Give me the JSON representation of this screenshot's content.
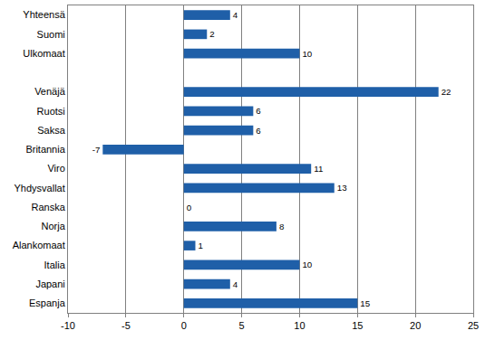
{
  "chart_data": {
    "type": "bar",
    "orientation": "horizontal",
    "categories": [
      "Yhteensä",
      "Suomi",
      "Ulkomaat",
      null,
      "Venäjä",
      "Ruotsi",
      "Saksa",
      "Britannia",
      "Viro",
      "Yhdysvallat",
      "Ranska",
      "Norja",
      "Alankomaat",
      "Italia",
      "Japani",
      "Espanja"
    ],
    "values": [
      4,
      2,
      10,
      null,
      22,
      6,
      6,
      -7,
      11,
      13,
      0,
      8,
      1,
      10,
      4,
      15
    ],
    "color": "#1f5fa8",
    "xlim": [
      -10,
      25
    ],
    "xticks": [
      -10,
      -5,
      0,
      5,
      10,
      15,
      20,
      25
    ],
    "grid": true,
    "data_labels": true
  }
}
